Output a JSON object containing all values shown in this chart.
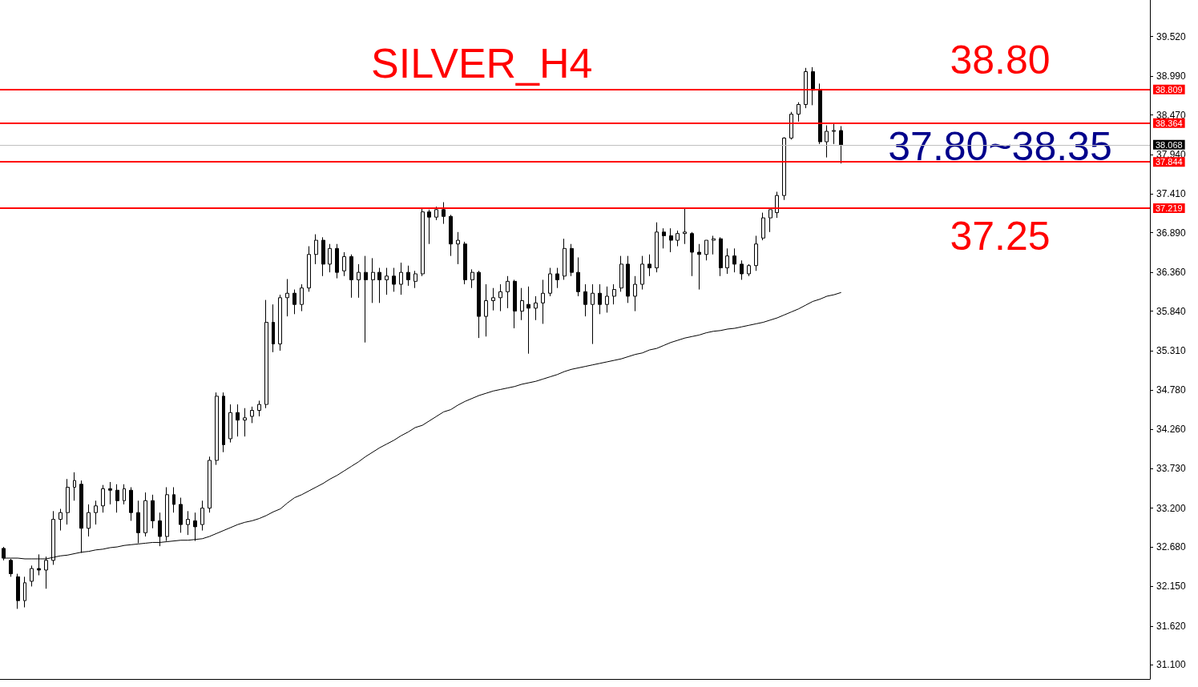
{
  "chart_data": {
    "type": "candlestick",
    "title": "SILVER_H4",
    "categories": [
      null,
      null,
      null,
      null,
      null,
      null,
      null,
      null,
      null,
      null,
      null,
      null,
      null,
      null,
      null,
      null,
      null,
      null,
      null,
      null,
      null,
      null,
      null,
      null,
      null,
      null,
      null,
      null,
      null,
      null,
      null,
      null,
      null,
      null,
      null,
      null,
      null,
      null,
      null,
      null,
      null,
      null,
      null,
      null,
      null,
      null,
      null,
      null,
      null,
      null,
      null,
      null,
      null,
      null,
      null,
      null,
      null,
      null,
      null,
      null,
      null,
      null,
      null,
      null,
      null,
      null,
      null,
      null,
      null,
      null,
      null,
      null,
      null,
      null,
      null,
      null,
      null,
      null,
      null,
      null,
      null,
      null,
      null,
      null,
      null,
      null,
      null,
      null,
      null,
      null,
      null,
      null,
      null,
      null,
      null,
      null,
      null,
      null,
      null,
      null,
      null,
      null,
      null,
      null,
      null,
      null,
      null,
      null,
      null,
      null,
      null,
      null,
      null,
      null,
      null,
      null,
      null,
      null,
      null,
      null,
      null,
      null,
      null,
      null,
      null,
      null,
      null,
      null,
      null,
      null,
      null,
      null,
      null,
      null,
      null,
      null,
      null,
      null,
      null,
      null,
      null,
      null,
      null,
      null,
      null,
      null,
      null,
      null,
      null,
      null,
      null,
      null,
      null,
      null,
      null,
      null,
      null,
      null,
      null,
      null,
      null,
      null
    ],
    "series": [
      {
        "color": "#000000",
        "ohlc": [
          [
            32.66,
            32.68,
            32.5,
            32.53
          ],
          [
            32.5,
            32.52,
            32.28,
            32.32
          ],
          [
            32.28,
            32.32,
            31.85,
            31.96
          ],
          [
            31.96,
            32.28,
            31.87,
            32.2
          ],
          [
            32.22,
            32.43,
            32.15,
            32.39
          ],
          [
            32.39,
            32.58,
            32.3,
            32.37
          ],
          [
            32.37,
            32.55,
            32.12,
            32.5
          ],
          [
            32.5,
            33.16,
            32.44,
            33.05
          ],
          [
            33.05,
            33.19,
            32.9,
            33.14
          ],
          [
            33.14,
            33.59,
            32.98,
            33.48
          ],
          [
            33.48,
            33.68,
            33.3,
            33.57
          ],
          [
            33.52,
            33.57,
            32.6,
            32.93
          ],
          [
            32.93,
            33.25,
            32.82,
            33.14
          ],
          [
            33.14,
            33.3,
            32.98,
            33.23
          ],
          [
            33.23,
            33.51,
            33.14,
            33.46
          ],
          [
            33.46,
            33.55,
            33.25,
            33.44
          ],
          [
            33.44,
            33.52,
            33.14,
            33.3
          ],
          [
            33.3,
            33.52,
            33.25,
            33.46
          ],
          [
            33.44,
            33.48,
            33.03,
            33.14
          ],
          [
            33.14,
            33.3,
            32.73,
            32.87
          ],
          [
            32.87,
            33.41,
            32.82,
            33.3
          ],
          [
            33.3,
            33.38,
            32.93,
            33.03
          ],
          [
            33.03,
            33.14,
            32.69,
            32.82
          ],
          [
            32.82,
            33.48,
            32.76,
            33.38
          ],
          [
            33.38,
            33.48,
            33.14,
            33.25
          ],
          [
            33.25,
            33.34,
            32.87,
            32.98
          ],
          [
            32.98,
            33.16,
            32.84,
            33.05
          ],
          [
            33.03,
            33.14,
            32.76,
            32.95
          ],
          [
            32.98,
            33.3,
            32.9,
            33.2
          ],
          [
            33.2,
            33.89,
            33.14,
            33.84
          ],
          [
            33.84,
            34.75,
            33.78,
            34.7
          ],
          [
            34.7,
            34.75,
            33.95,
            34.05
          ],
          [
            34.13,
            34.59,
            34.08,
            34.48
          ],
          [
            34.48,
            34.59,
            34.16,
            34.38
          ],
          [
            34.38,
            34.54,
            34.16,
            34.41
          ],
          [
            34.43,
            34.56,
            34.34,
            34.51
          ],
          [
            34.51,
            34.64,
            34.43,
            34.59
          ],
          [
            34.59,
            35.99,
            34.54,
            35.69
          ],
          [
            35.69,
            35.93,
            35.29,
            35.4
          ],
          [
            35.4,
            36.06,
            35.31,
            36.02
          ],
          [
            36.02,
            36.27,
            35.77,
            36.08
          ],
          [
            36.08,
            36.13,
            35.8,
            35.93
          ],
          [
            35.93,
            36.2,
            35.84,
            36.15
          ],
          [
            36.15,
            36.71,
            36.1,
            36.6
          ],
          [
            36.6,
            36.87,
            36.47,
            36.79
          ],
          [
            36.79,
            36.83,
            36.31,
            36.47
          ],
          [
            36.47,
            36.74,
            36.36,
            36.68
          ],
          [
            36.68,
            36.74,
            36.28,
            36.36
          ],
          [
            36.38,
            36.63,
            36.31,
            36.57
          ],
          [
            36.57,
            36.6,
            36.02,
            36.26
          ],
          [
            36.26,
            36.47,
            36.02,
            36.36
          ],
          [
            36.36,
            36.58,
            35.42,
            36.26
          ],
          [
            36.26,
            36.55,
            35.95,
            36.36
          ],
          [
            36.36,
            36.42,
            35.95,
            36.26
          ],
          [
            36.26,
            36.42,
            36.06,
            36.31
          ],
          [
            36.31,
            36.42,
            36.1,
            36.2
          ],
          [
            36.2,
            36.49,
            36.06,
            36.36
          ],
          [
            36.36,
            36.45,
            36.18,
            36.26
          ],
          [
            36.24,
            36.38,
            36.15,
            36.34
          ],
          [
            36.34,
            37.22,
            36.31,
            37.17
          ],
          [
            37.17,
            37.2,
            36.74,
            37.1
          ],
          [
            37.1,
            37.24,
            37.06,
            37.2
          ],
          [
            37.2,
            37.3,
            37.01,
            37.11
          ],
          [
            37.11,
            37.13,
            36.58,
            36.74
          ],
          [
            36.74,
            36.9,
            36.47,
            36.79
          ],
          [
            36.74,
            36.77,
            36.2,
            36.26
          ],
          [
            36.26,
            36.4,
            36.15,
            36.36
          ],
          [
            36.36,
            36.38,
            35.48,
            35.77
          ],
          [
            35.77,
            36.2,
            35.5,
            35.98
          ],
          [
            35.98,
            36.15,
            35.85,
            36.02
          ],
          [
            36.02,
            36.2,
            35.84,
            36.1
          ],
          [
            36.1,
            36.31,
            35.88,
            36.24
          ],
          [
            36.24,
            36.26,
            35.61,
            35.84
          ],
          [
            35.84,
            36.15,
            35.72,
            35.98
          ],
          [
            35.93,
            36.17,
            35.27,
            35.88
          ],
          [
            35.88,
            36.04,
            35.72,
            35.95
          ],
          [
            35.95,
            36.26,
            35.67,
            36.08
          ],
          [
            36.08,
            36.42,
            36.04,
            36.34
          ],
          [
            36.34,
            36.42,
            36.15,
            36.26
          ],
          [
            36.31,
            36.81,
            36.26,
            36.68
          ],
          [
            36.68,
            36.74,
            36.31,
            36.36
          ],
          [
            36.36,
            36.56,
            36.04,
            36.1
          ],
          [
            36.1,
            36.2,
            35.77,
            35.93
          ],
          [
            35.93,
            36.2,
            35.4,
            36.08
          ],
          [
            36.08,
            36.2,
            35.8,
            35.93
          ],
          [
            35.93,
            36.17,
            35.82,
            36.04
          ],
          [
            36.04,
            36.2,
            35.93,
            36.13
          ],
          [
            36.15,
            36.58,
            36.1,
            36.47
          ],
          [
            36.47,
            36.58,
            35.95,
            36.04
          ],
          [
            36.04,
            36.31,
            35.84,
            36.2
          ],
          [
            36.2,
            36.58,
            36.13,
            36.47
          ],
          [
            36.47,
            36.6,
            36.31,
            36.42
          ],
          [
            36.42,
            37.03,
            36.36,
            36.9
          ],
          [
            36.9,
            36.95,
            36.68,
            36.85
          ],
          [
            36.85,
            36.95,
            36.63,
            36.79
          ],
          [
            36.79,
            36.92,
            36.71,
            36.88
          ],
          [
            36.88,
            37.22,
            36.74,
            36.9
          ],
          [
            36.88,
            36.9,
            36.31,
            36.63
          ],
          [
            36.63,
            36.74,
            36.13,
            36.6
          ],
          [
            36.6,
            36.79,
            36.52,
            36.79
          ],
          [
            36.79,
            36.85,
            36.6,
            36.81
          ],
          [
            36.81,
            36.83,
            36.31,
            36.42
          ],
          [
            36.42,
            36.68,
            36.34,
            36.58
          ],
          [
            36.58,
            36.68,
            36.36,
            36.47
          ],
          [
            36.47,
            36.52,
            36.26,
            36.34
          ],
          [
            36.34,
            36.47,
            36.31,
            36.45
          ],
          [
            36.45,
            36.85,
            36.38,
            36.74
          ],
          [
            36.82,
            37.16,
            36.79,
            37.09
          ],
          [
            37.09,
            37.2,
            36.9,
            37.2
          ],
          [
            37.16,
            37.44,
            37.09,
            37.39
          ],
          [
            37.39,
            38.17,
            37.33,
            38.16
          ],
          [
            38.16,
            38.51,
            38.14,
            38.48
          ],
          [
            38.48,
            38.64,
            38.38,
            38.61
          ],
          [
            38.61,
            39.1,
            38.56,
            39.05
          ],
          [
            39.05,
            39.11,
            38.6,
            38.8
          ],
          [
            38.8,
            38.89,
            38.08,
            38.11
          ],
          [
            38.11,
            38.33,
            37.9,
            38.25
          ],
          [
            38.25,
            38.35,
            38.08,
            38.26
          ],
          [
            38.26,
            38.32,
            37.82,
            38.07
          ],
          null,
          null,
          null,
          null,
          null,
          null,
          null,
          null,
          null,
          null,
          null,
          null,
          null,
          null,
          null,
          null,
          null,
          null,
          null,
          null,
          null,
          null,
          null,
          null,
          null,
          null,
          null,
          null,
          null,
          null,
          null,
          null,
          null,
          null,
          null,
          null,
          null,
          null,
          null,
          null,
          null,
          null,
          null
        ]
      },
      {
        "type": "line",
        "color": "#000000",
        "values": [
          32.53,
          32.53,
          32.53,
          32.52,
          32.52,
          32.52,
          32.52,
          32.54,
          32.56,
          32.57,
          32.59,
          32.61,
          32.62,
          32.64,
          32.65,
          32.67,
          32.68,
          32.7,
          32.71,
          32.72,
          32.73,
          32.74,
          32.74,
          32.75,
          32.76,
          32.77,
          32.77,
          32.78,
          32.79,
          32.82,
          32.86,
          32.9,
          32.94,
          32.98,
          33.01,
          33.03,
          33.06,
          33.1,
          33.15,
          33.19,
          33.27,
          33.34,
          33.38,
          33.43,
          33.48,
          33.53,
          33.59,
          33.64,
          33.7,
          33.76,
          33.82,
          33.89,
          33.95,
          34.01,
          34.06,
          34.11,
          34.17,
          34.22,
          34.28,
          34.31,
          34.37,
          34.43,
          34.49,
          34.52,
          34.58,
          34.63,
          34.67,
          34.71,
          34.74,
          34.77,
          34.79,
          34.81,
          34.83,
          34.86,
          34.88,
          34.9,
          34.93,
          34.96,
          34.99,
          35.03,
          35.06,
          35.08,
          35.1,
          35.12,
          35.14,
          35.16,
          35.18,
          35.2,
          35.23,
          35.26,
          35.28,
          35.32,
          35.34,
          35.38,
          35.42,
          35.45,
          35.48,
          35.5,
          35.52,
          35.55,
          35.57,
          35.58,
          35.6,
          35.61,
          35.63,
          35.65,
          35.67,
          35.69,
          35.72,
          35.75,
          35.79,
          35.83,
          35.87,
          35.92,
          35.97,
          36.0,
          36.04,
          36.06,
          36.09,
          null,
          null,
          null,
          null,
          null,
          null,
          null,
          null,
          null,
          null,
          null,
          null,
          null,
          null,
          null,
          null,
          null,
          null,
          null,
          null,
          null,
          null,
          null,
          null,
          null,
          null,
          null,
          null,
          null,
          null,
          null,
          null,
          null,
          null,
          null,
          null,
          null,
          null,
          null,
          null,
          null,
          null,
          null
        ]
      }
    ],
    "ylim": [
      30.91,
      40.01
    ],
    "yticks": [
      {
        "value": 31.1,
        "label": "31.100"
      },
      {
        "value": 31.62,
        "label": "31.620"
      },
      {
        "value": 32.15,
        "label": "32.150"
      },
      {
        "value": 32.68,
        "label": "32.680"
      },
      {
        "value": 33.2,
        "label": "33.200"
      },
      {
        "value": 33.73,
        "label": "33.730"
      },
      {
        "value": 34.26,
        "label": "34.260"
      },
      {
        "value": 34.78,
        "label": "34.780"
      },
      {
        "value": 35.31,
        "label": "35.310"
      },
      {
        "value": 35.84,
        "label": "35.840"
      },
      {
        "value": 36.36,
        "label": "36.360"
      },
      {
        "value": 36.89,
        "label": "36.890"
      },
      {
        "value": 37.41,
        "label": "37.410"
      },
      {
        "value": 37.94,
        "label": "37.940"
      },
      {
        "value": 38.47,
        "label": "38.470"
      },
      {
        "value": 38.99,
        "label": "38.990"
      },
      {
        "value": 39.52,
        "label": "39.520"
      }
    ],
    "ref_lines": [
      {
        "axis": "y",
        "value": 38.809,
        "label": "38.809",
        "color": "#ff0000"
      },
      {
        "axis": "y",
        "value": 38.364,
        "label": "38.364",
        "color": "#ff0000"
      },
      {
        "axis": "y",
        "value": 38.068,
        "label": "38.068",
        "color": "#c0c0c0"
      },
      {
        "axis": "y",
        "value": 37.844,
        "label": "37.844",
        "color": "#ff0000"
      },
      {
        "axis": "y",
        "value": 37.219,
        "label": "37.219",
        "color": "#ff0000"
      }
    ],
    "annotations": [
      "38.80",
      "37.80~38.35",
      "37.25"
    ],
    "tick_labels": "y",
    "grid": false
  }
}
